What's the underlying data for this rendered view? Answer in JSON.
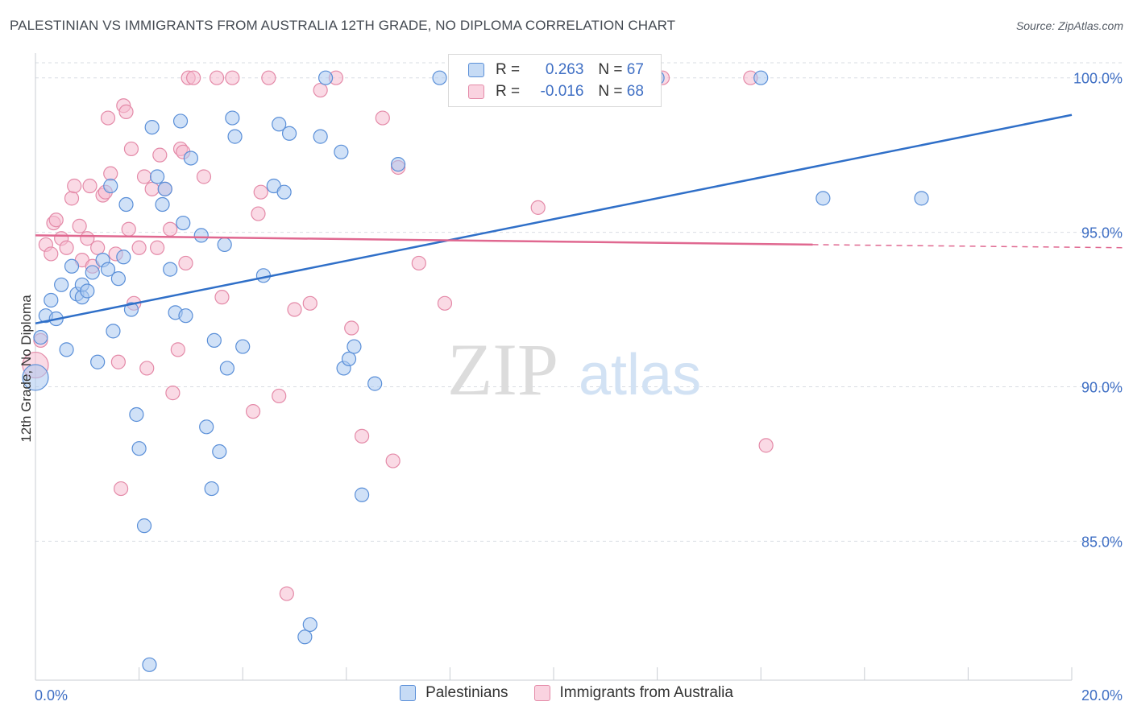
{
  "header": {
    "title": "PALESTINIAN VS IMMIGRANTS FROM AUSTRALIA 12TH GRADE, NO DIPLOMA CORRELATION CHART",
    "source": "Source: ZipAtlas.com"
  },
  "watermark": {
    "zip": "ZIP",
    "atlas": "atlas"
  },
  "legend": {
    "rows": [
      {
        "r_label": "R =",
        "r_value": "0.263",
        "n_label": "N =",
        "n_value": "67"
      },
      {
        "r_label": "R =",
        "r_value": "-0.016",
        "n_label": "N =",
        "n_value": "68"
      }
    ]
  },
  "bottom_legend": {
    "series1": "Palestinians",
    "series2": "Immigrants from Australia"
  },
  "colors": {
    "blue_fill": "#aac8f0",
    "blue_stroke": "#5a8fd8",
    "blue_line": "#2f6fc8",
    "pink_fill": "#f6bcd0",
    "pink_stroke": "#e48aa8",
    "pink_line": "#e06890",
    "tick_text": "#3f6fc4",
    "grid": "#d9dde3"
  },
  "chart_data": {
    "type": "scatter",
    "title": "PALESTINIAN VS IMMIGRANTS FROM AUSTRALIA 12TH GRADE, NO DIPLOMA CORRELATION CHART",
    "xlabel": "",
    "ylabel": "12th Grade, No Diploma",
    "xlim": [
      0,
      20
    ],
    "ylim": [
      80.5,
      100.8
    ],
    "x_tick_labels": [
      "0.0%",
      "20.0%"
    ],
    "y_ticks": [
      85,
      90,
      95,
      100
    ],
    "y_tick_labels": [
      "85.0%",
      "90.0%",
      "95.0%",
      "100.0%"
    ],
    "grid": true,
    "series": [
      {
        "name": "Palestinians",
        "r": 0.263,
        "n": 67,
        "trend": {
          "x0": 0.0,
          "y0": 92.05,
          "x1": 20.0,
          "y1": 98.8,
          "dashed_from": null
        },
        "points": [
          [
            0.0,
            90.3
          ],
          [
            0.1,
            91.6
          ],
          [
            0.2,
            92.3
          ],
          [
            0.3,
            92.8
          ],
          [
            0.4,
            92.2
          ],
          [
            0.5,
            93.3
          ],
          [
            0.6,
            91.2
          ],
          [
            0.7,
            93.9
          ],
          [
            0.8,
            93.0
          ],
          [
            0.9,
            92.9
          ],
          [
            0.9,
            93.3
          ],
          [
            1.0,
            93.1
          ],
          [
            1.1,
            93.7
          ],
          [
            1.2,
            90.8
          ],
          [
            1.3,
            94.1
          ],
          [
            1.4,
            93.8
          ],
          [
            1.45,
            96.5
          ],
          [
            1.5,
            91.8
          ],
          [
            1.6,
            93.5
          ],
          [
            1.7,
            94.2
          ],
          [
            1.75,
            95.9
          ],
          [
            1.85,
            92.5
          ],
          [
            1.95,
            89.1
          ],
          [
            2.0,
            88.0
          ],
          [
            2.1,
            85.5
          ],
          [
            2.2,
            81.0
          ],
          [
            2.25,
            98.4
          ],
          [
            2.35,
            96.8
          ],
          [
            2.45,
            95.9
          ],
          [
            2.5,
            96.4
          ],
          [
            2.6,
            93.8
          ],
          [
            2.7,
            92.4
          ],
          [
            2.8,
            98.6
          ],
          [
            2.85,
            95.3
          ],
          [
            2.9,
            92.3
          ],
          [
            3.0,
            97.4
          ],
          [
            3.2,
            94.9
          ],
          [
            3.3,
            88.7
          ],
          [
            3.4,
            86.7
          ],
          [
            3.45,
            91.5
          ],
          [
            3.55,
            87.9
          ],
          [
            3.65,
            94.6
          ],
          [
            3.7,
            90.6
          ],
          [
            3.8,
            98.7
          ],
          [
            3.85,
            98.1
          ],
          [
            4.0,
            91.3
          ],
          [
            4.4,
            93.6
          ],
          [
            4.6,
            96.5
          ],
          [
            4.7,
            98.5
          ],
          [
            4.8,
            96.3
          ],
          [
            4.9,
            98.2
          ],
          [
            5.2,
            81.9
          ],
          [
            5.3,
            82.3
          ],
          [
            5.5,
            98.1
          ],
          [
            5.6,
            100.0
          ],
          [
            5.9,
            97.6
          ],
          [
            5.95,
            90.6
          ],
          [
            6.05,
            90.9
          ],
          [
            6.15,
            91.3
          ],
          [
            6.3,
            86.5
          ],
          [
            6.55,
            90.1
          ],
          [
            7.0,
            97.2
          ],
          [
            7.8,
            100.0
          ],
          [
            12.0,
            100.0
          ],
          [
            14.0,
            100.0
          ],
          [
            15.2,
            96.1
          ],
          [
            17.1,
            96.1
          ]
        ]
      },
      {
        "name": "Immigrants from Australia",
        "r": -0.016,
        "n": 68,
        "trend": {
          "x0": 0.0,
          "y0": 94.9,
          "x1": 20.0,
          "y1": 94.5,
          "dashed_from": 15.0
        },
        "points": [
          [
            0.0,
            90.7
          ],
          [
            0.1,
            91.5
          ],
          [
            0.2,
            94.6
          ],
          [
            0.3,
            94.3
          ],
          [
            0.35,
            95.3
          ],
          [
            0.4,
            95.4
          ],
          [
            0.5,
            94.8
          ],
          [
            0.6,
            94.5
          ],
          [
            0.7,
            96.1
          ],
          [
            0.75,
            96.5
          ],
          [
            0.85,
            95.2
          ],
          [
            0.9,
            94.1
          ],
          [
            1.0,
            94.8
          ],
          [
            1.05,
            96.5
          ],
          [
            1.1,
            93.9
          ],
          [
            1.2,
            94.5
          ],
          [
            1.3,
            96.2
          ],
          [
            1.35,
            96.3
          ],
          [
            1.4,
            98.7
          ],
          [
            1.45,
            96.9
          ],
          [
            1.55,
            94.3
          ],
          [
            1.6,
            90.8
          ],
          [
            1.65,
            86.7
          ],
          [
            1.7,
            99.1
          ],
          [
            1.75,
            98.9
          ],
          [
            1.8,
            95.1
          ],
          [
            1.85,
            97.7
          ],
          [
            1.9,
            92.7
          ],
          [
            2.0,
            94.5
          ],
          [
            2.1,
            96.8
          ],
          [
            2.15,
            90.6
          ],
          [
            2.25,
            96.4
          ],
          [
            2.35,
            94.5
          ],
          [
            2.4,
            97.5
          ],
          [
            2.5,
            96.4
          ],
          [
            2.6,
            95.1
          ],
          [
            2.65,
            89.8
          ],
          [
            2.75,
            91.2
          ],
          [
            2.8,
            97.7
          ],
          [
            2.85,
            97.6
          ],
          [
            2.9,
            94.0
          ],
          [
            2.95,
            100.0
          ],
          [
            3.05,
            100.0
          ],
          [
            3.25,
            96.8
          ],
          [
            3.5,
            100.0
          ],
          [
            3.6,
            92.9
          ],
          [
            3.8,
            100.0
          ],
          [
            4.2,
            89.2
          ],
          [
            4.3,
            95.6
          ],
          [
            4.35,
            96.3
          ],
          [
            4.5,
            100.0
          ],
          [
            4.7,
            89.7
          ],
          [
            4.85,
            83.3
          ],
          [
            5.0,
            92.5
          ],
          [
            5.3,
            92.7
          ],
          [
            5.5,
            99.6
          ],
          [
            5.8,
            100.0
          ],
          [
            6.1,
            91.9
          ],
          [
            6.3,
            88.4
          ],
          [
            6.7,
            98.7
          ],
          [
            6.9,
            87.6
          ],
          [
            7.0,
            97.1
          ],
          [
            7.4,
            94.0
          ],
          [
            7.9,
            92.7
          ],
          [
            9.7,
            95.8
          ],
          [
            12.1,
            100.0
          ],
          [
            13.8,
            100.0
          ],
          [
            14.1,
            88.1
          ]
        ]
      }
    ]
  }
}
